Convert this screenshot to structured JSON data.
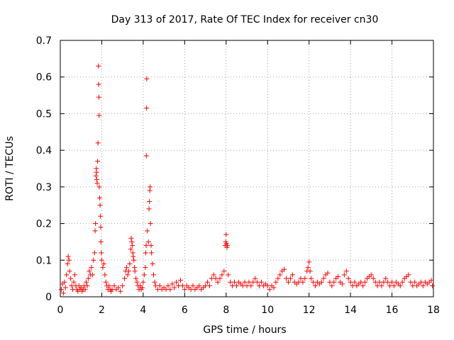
{
  "chart_data": {
    "type": "scatter",
    "title": "Day 313 of 2017, Rate Of TEC Index for receiver cn30",
    "xlabel": "GPS time / hours",
    "ylabel": "ROTI / TECUs",
    "xlim": [
      0,
      18
    ],
    "ylim": [
      0,
      0.7
    ],
    "x_ticks": [
      0,
      2,
      4,
      6,
      8,
      10,
      12,
      14,
      16,
      18
    ],
    "x_tick_labels": [
      "0",
      "2",
      "4",
      "6",
      "8",
      "10",
      "12",
      "14",
      "16",
      "18"
    ],
    "y_ticks": [
      0,
      0.1,
      0.2,
      0.3,
      0.4,
      0.5,
      0.6,
      0.7
    ],
    "y_tick_labels": [
      "0",
      "0.1",
      "0.2",
      "0.3",
      "0.4",
      "0.5",
      "0.6",
      "0.7"
    ],
    "grid": true,
    "marker": "+",
    "color": "#ff0000",
    "series": [
      {
        "name": "ROTI",
        "points": [
          [
            0.05,
            0.02
          ],
          [
            0.1,
            0.035
          ],
          [
            0.15,
            0.01
          ],
          [
            0.2,
            0.04
          ],
          [
            0.25,
            0.025
          ],
          [
            0.3,
            0.06
          ],
          [
            0.35,
            0.09
          ],
          [
            0.38,
            0.11
          ],
          [
            0.42,
            0.1
          ],
          [
            0.45,
            0.07
          ],
          [
            0.5,
            0.05
          ],
          [
            0.55,
            0.03
          ],
          [
            0.6,
            0.02
          ],
          [
            0.65,
            0.04
          ],
          [
            0.7,
            0.06
          ],
          [
            0.75,
            0.03
          ],
          [
            0.8,
            0.02
          ],
          [
            0.85,
            0.015
          ],
          [
            0.9,
            0.03
          ],
          [
            0.95,
            0.02
          ],
          [
            1.0,
            0.025
          ],
          [
            1.05,
            0.015
          ],
          [
            1.1,
            0.02
          ],
          [
            1.15,
            0.03
          ],
          [
            1.2,
            0.02
          ],
          [
            1.25,
            0.04
          ],
          [
            1.3,
            0.03
          ],
          [
            1.35,
            0.05
          ],
          [
            1.4,
            0.07
          ],
          [
            1.45,
            0.06
          ],
          [
            1.5,
            0.08
          ],
          [
            1.55,
            0.06
          ],
          [
            1.6,
            0.1
          ],
          [
            1.65,
            0.12
          ],
          [
            1.68,
            0.18
          ],
          [
            1.7,
            0.2
          ],
          [
            1.72,
            0.33
          ],
          [
            1.74,
            0.35
          ],
          [
            1.75,
            0.34
          ],
          [
            1.76,
            0.32
          ],
          [
            1.78,
            0.31
          ],
          [
            1.8,
            0.37
          ],
          [
            1.82,
            0.42
          ],
          [
            1.84,
            0.63
          ],
          [
            1.85,
            0.58
          ],
          [
            1.86,
            0.545
          ],
          [
            1.87,
            0.495
          ],
          [
            1.88,
            0.3
          ],
          [
            1.9,
            0.27
          ],
          [
            1.92,
            0.25
          ],
          [
            1.94,
            0.22
          ],
          [
            1.95,
            0.19
          ],
          [
            1.96,
            0.15
          ],
          [
            1.98,
            0.12
          ],
          [
            2.0,
            0.1
          ],
          [
            2.05,
            0.08
          ],
          [
            2.1,
            0.09
          ],
          [
            2.15,
            0.06
          ],
          [
            2.2,
            0.04
          ],
          [
            2.25,
            0.03
          ],
          [
            2.3,
            0.02
          ],
          [
            2.35,
            0.03
          ],
          [
            2.4,
            0.02
          ],
          [
            2.45,
            0.015
          ],
          [
            2.5,
            0.02
          ],
          [
            2.6,
            0.03
          ],
          [
            2.7,
            0.02
          ],
          [
            2.8,
            0.025
          ],
          [
            2.9,
            0.015
          ],
          [
            3.0,
            0.03
          ],
          [
            3.1,
            0.05
          ],
          [
            3.15,
            0.07
          ],
          [
            3.2,
            0.08
          ],
          [
            3.25,
            0.06
          ],
          [
            3.3,
            0.07
          ],
          [
            3.35,
            0.09
          ],
          [
            3.4,
            0.13
          ],
          [
            3.42,
            0.16
          ],
          [
            3.45,
            0.15
          ],
          [
            3.48,
            0.14
          ],
          [
            3.5,
            0.12
          ],
          [
            3.52,
            0.11
          ],
          [
            3.55,
            0.1
          ],
          [
            3.58,
            0.08
          ],
          [
            3.6,
            0.07
          ],
          [
            3.65,
            0.05
          ],
          [
            3.7,
            0.04
          ],
          [
            3.75,
            0.03
          ],
          [
            3.8,
            0.02
          ],
          [
            3.85,
            0.03
          ],
          [
            3.9,
            0.02
          ],
          [
            3.95,
            0.025
          ],
          [
            4.0,
            0.04
          ],
          [
            4.05,
            0.06
          ],
          [
            4.1,
            0.08
          ],
          [
            4.12,
            0.12
          ],
          [
            4.14,
            0.14
          ],
          [
            4.15,
            0.385
          ],
          [
            4.16,
            0.515
          ],
          [
            4.17,
            0.595
          ],
          [
            4.2,
            0.18
          ],
          [
            4.25,
            0.15
          ],
          [
            4.28,
            0.24
          ],
          [
            4.3,
            0.26
          ],
          [
            4.32,
            0.29
          ],
          [
            4.33,
            0.3
          ],
          [
            4.35,
            0.2
          ],
          [
            4.38,
            0.14
          ],
          [
            4.4,
            0.12
          ],
          [
            4.45,
            0.09
          ],
          [
            4.5,
            0.06
          ],
          [
            4.55,
            0.04
          ],
          [
            4.6,
            0.03
          ],
          [
            4.7,
            0.02
          ],
          [
            4.8,
            0.03
          ],
          [
            4.9,
            0.02
          ],
          [
            5.0,
            0.025
          ],
          [
            5.1,
            0.02
          ],
          [
            5.2,
            0.03
          ],
          [
            5.3,
            0.02
          ],
          [
            5.4,
            0.035
          ],
          [
            5.5,
            0.025
          ],
          [
            5.6,
            0.04
          ],
          [
            5.7,
            0.03
          ],
          [
            5.8,
            0.045
          ],
          [
            5.9,
            0.03
          ],
          [
            6.0,
            0.02
          ],
          [
            6.1,
            0.03
          ],
          [
            6.2,
            0.025
          ],
          [
            6.3,
            0.02
          ],
          [
            6.4,
            0.03
          ],
          [
            6.5,
            0.02
          ],
          [
            6.6,
            0.025
          ],
          [
            6.7,
            0.03
          ],
          [
            6.8,
            0.02
          ],
          [
            6.9,
            0.025
          ],
          [
            7.0,
            0.03
          ],
          [
            7.1,
            0.04
          ],
          [
            7.2,
            0.03
          ],
          [
            7.3,
            0.05
          ],
          [
            7.4,
            0.06
          ],
          [
            7.5,
            0.05
          ],
          [
            7.6,
            0.04
          ],
          [
            7.7,
            0.05
          ],
          [
            7.8,
            0.06
          ],
          [
            7.9,
            0.07
          ],
          [
            7.95,
            0.14
          ],
          [
            7.98,
            0.15
          ],
          [
            8.0,
            0.17
          ],
          [
            8.02,
            0.145
          ],
          [
            8.04,
            0.135
          ],
          [
            8.06,
            0.14
          ],
          [
            8.1,
            0.06
          ],
          [
            8.2,
            0.04
          ],
          [
            8.3,
            0.03
          ],
          [
            8.4,
            0.04
          ],
          [
            8.5,
            0.03
          ],
          [
            8.6,
            0.04
          ],
          [
            8.7,
            0.035
          ],
          [
            8.8,
            0.03
          ],
          [
            8.9,
            0.04
          ],
          [
            9.0,
            0.03
          ],
          [
            9.1,
            0.04
          ],
          [
            9.2,
            0.03
          ],
          [
            9.3,
            0.04
          ],
          [
            9.4,
            0.05
          ],
          [
            9.5,
            0.04
          ],
          [
            9.6,
            0.03
          ],
          [
            9.7,
            0.04
          ],
          [
            9.8,
            0.03
          ],
          [
            9.9,
            0.035
          ],
          [
            10.0,
            0.03
          ],
          [
            10.1,
            0.02
          ],
          [
            10.2,
            0.03
          ],
          [
            10.3,
            0.025
          ],
          [
            10.4,
            0.04
          ],
          [
            10.5,
            0.05
          ],
          [
            10.6,
            0.06
          ],
          [
            10.7,
            0.07
          ],
          [
            10.8,
            0.075
          ],
          [
            10.9,
            0.05
          ],
          [
            11.0,
            0.04
          ],
          [
            11.1,
            0.05
          ],
          [
            11.2,
            0.06
          ],
          [
            11.3,
            0.04
          ],
          [
            11.4,
            0.035
          ],
          [
            11.5,
            0.04
          ],
          [
            11.6,
            0.05
          ],
          [
            11.7,
            0.04
          ],
          [
            11.8,
            0.05
          ],
          [
            11.9,
            0.07
          ],
          [
            11.95,
            0.08
          ],
          [
            12.0,
            0.095
          ],
          [
            12.05,
            0.07
          ],
          [
            12.1,
            0.05
          ],
          [
            12.2,
            0.04
          ],
          [
            12.3,
            0.03
          ],
          [
            12.4,
            0.04
          ],
          [
            12.5,
            0.035
          ],
          [
            12.6,
            0.04
          ],
          [
            12.7,
            0.05
          ],
          [
            12.8,
            0.06
          ],
          [
            12.9,
            0.065
          ],
          [
            13.0,
            0.04
          ],
          [
            13.1,
            0.03
          ],
          [
            13.2,
            0.04
          ],
          [
            13.3,
            0.05
          ],
          [
            13.4,
            0.055
          ],
          [
            13.5,
            0.04
          ],
          [
            13.6,
            0.035
          ],
          [
            13.7,
            0.06
          ],
          [
            13.8,
            0.07
          ],
          [
            13.9,
            0.05
          ],
          [
            14.0,
            0.04
          ],
          [
            14.1,
            0.03
          ],
          [
            14.2,
            0.04
          ],
          [
            14.3,
            0.03
          ],
          [
            14.4,
            0.035
          ],
          [
            14.5,
            0.04
          ],
          [
            14.6,
            0.03
          ],
          [
            14.7,
            0.04
          ],
          [
            14.8,
            0.05
          ],
          [
            14.9,
            0.055
          ],
          [
            15.0,
            0.06
          ],
          [
            15.1,
            0.05
          ],
          [
            15.2,
            0.04
          ],
          [
            15.3,
            0.03
          ],
          [
            15.4,
            0.04
          ],
          [
            15.5,
            0.03
          ],
          [
            15.6,
            0.04
          ],
          [
            15.7,
            0.05
          ],
          [
            15.8,
            0.04
          ],
          [
            15.9,
            0.03
          ],
          [
            16.0,
            0.04
          ],
          [
            16.1,
            0.03
          ],
          [
            16.2,
            0.04
          ],
          [
            16.3,
            0.035
          ],
          [
            16.4,
            0.03
          ],
          [
            16.5,
            0.04
          ],
          [
            16.6,
            0.05
          ],
          [
            16.7,
            0.055
          ],
          [
            16.8,
            0.06
          ],
          [
            16.9,
            0.04
          ],
          [
            17.0,
            0.03
          ],
          [
            17.1,
            0.04
          ],
          [
            17.2,
            0.03
          ],
          [
            17.3,
            0.035
          ],
          [
            17.4,
            0.04
          ],
          [
            17.5,
            0.03
          ],
          [
            17.6,
            0.04
          ],
          [
            17.7,
            0.035
          ],
          [
            17.8,
            0.04
          ],
          [
            17.9,
            0.045
          ],
          [
            17.95,
            0.03
          ]
        ]
      }
    ]
  }
}
